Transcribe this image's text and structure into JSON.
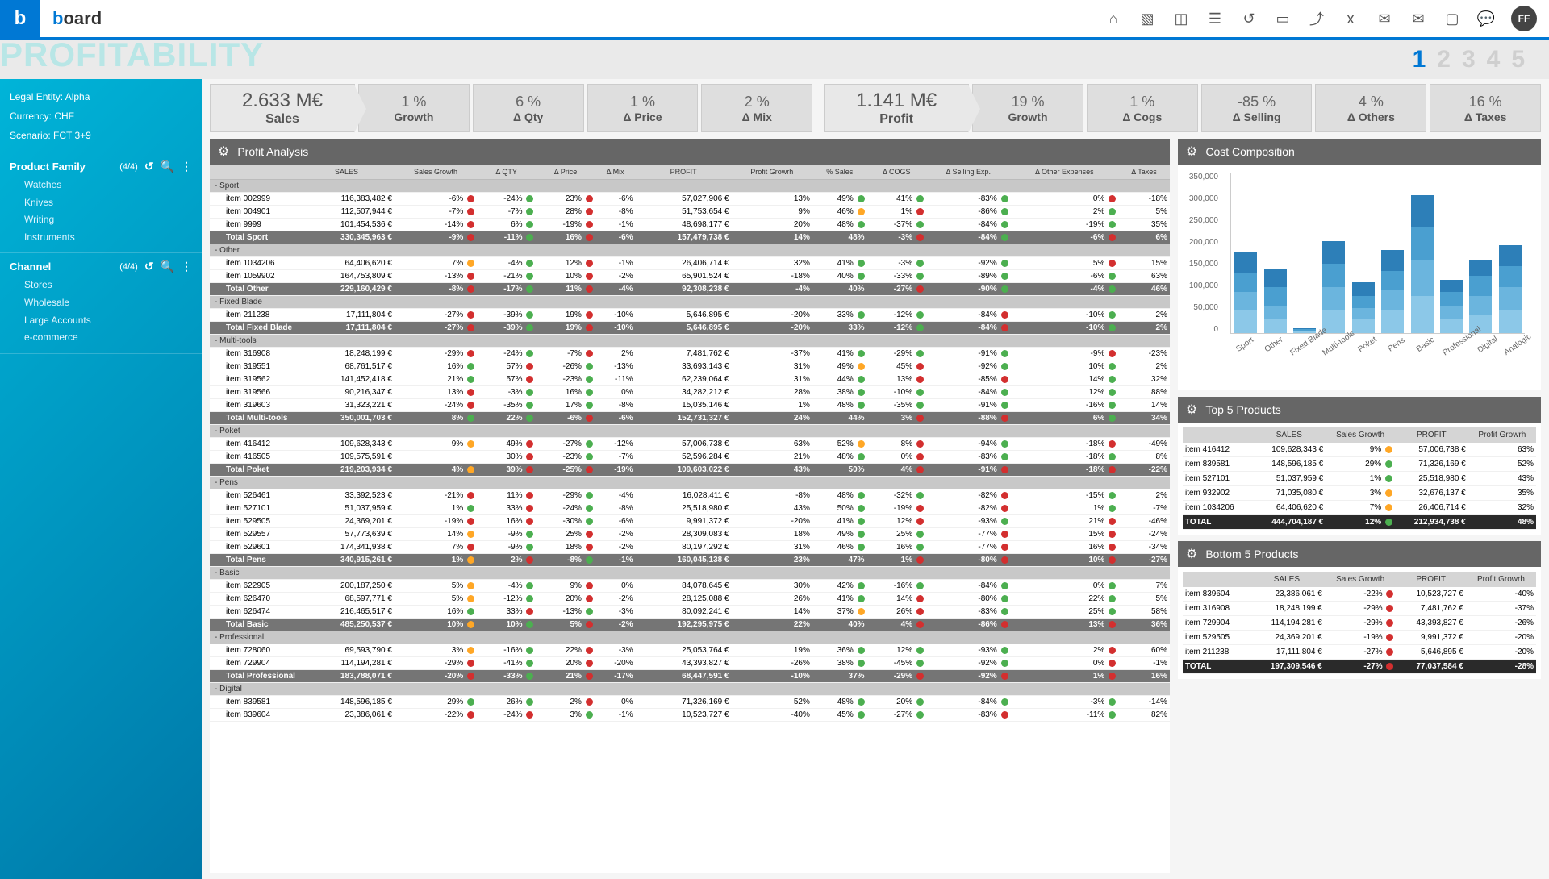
{
  "header": {
    "logo_b": "b",
    "brand": {
      "b": "b",
      "rest": "oard"
    },
    "avatar": "FF"
  },
  "title": "PROFITABILITY",
  "pagers": [
    "1",
    "2",
    "3",
    "4",
    "5"
  ],
  "sidebar": {
    "meta": {
      "entity": "Legal Entity: Alpha",
      "currency": "Currency:  CHF",
      "scenario": "Scenario: FCT 3+9"
    },
    "family": {
      "title": "Product Family",
      "count": "(4/4)",
      "items": [
        "Watches",
        "Knives",
        "Writing",
        "Instruments"
      ]
    },
    "channel": {
      "title": "Channel",
      "count": "(4/4)",
      "items": [
        "Stores",
        "Wholesale",
        "Large Accounts",
        "e-commerce"
      ]
    }
  },
  "kpis_left": [
    {
      "val": "2.633 M€",
      "lbl": "Sales",
      "big": true
    },
    {
      "val": "1 %",
      "lbl": "Growth"
    },
    {
      "val": "6 %",
      "lbl": "Δ Qty"
    },
    {
      "val": "1 %",
      "lbl": "Δ Price"
    },
    {
      "val": "2 %",
      "lbl": "Δ Mix"
    }
  ],
  "kpis_right": [
    {
      "val": "1.141 M€",
      "lbl": "Profit",
      "big": true
    },
    {
      "val": "19 %",
      "lbl": "Growth"
    },
    {
      "val": "1 %",
      "lbl": "Δ Cogs"
    },
    {
      "val": "-85 %",
      "lbl": "Δ Selling"
    },
    {
      "val": "4 %",
      "lbl": "Δ Others"
    },
    {
      "val": "16 %",
      "lbl": "Δ Taxes"
    }
  ],
  "profit_analysis": {
    "title": "Profit Analysis",
    "cols": [
      "",
      "SALES",
      "Sales Growth",
      "Δ QTY",
      "Δ Price",
      "Δ Mix",
      "PROFIT",
      "Profit Growrh",
      "% Sales",
      "Δ COGS",
      "Δ Selling Exp.",
      "Δ Other Expenses",
      "Δ Taxes"
    ],
    "rows": [
      {
        "t": "group",
        "c": [
          "-  Sport"
        ]
      },
      {
        "t": "row",
        "c": [
          "item 002999",
          "116,383,482 €",
          "-6%:r",
          "-24%:g",
          "23%:r",
          "-6%:",
          "57,027,906 €",
          "13%:",
          "49%:g",
          "41%:g",
          "-83%:g",
          "0%:r",
          "-18%:"
        ]
      },
      {
        "t": "row",
        "c": [
          "item 004901",
          "112,507,944 €",
          "-7%:r",
          "-7%:g",
          "28%:r",
          "-8%:",
          "51,753,654 €",
          "9%:",
          "46%:y",
          "1%:r",
          "-86%:g",
          "2%:g",
          "5%:"
        ]
      },
      {
        "t": "row",
        "c": [
          "item 9999",
          "101,454,536 €",
          "-14%:r",
          "6%:g",
          "-19%:r",
          "-1%:",
          "48,698,177 €",
          "20%:",
          "48%:g",
          "-37%:g",
          "-84%:g",
          "-19%:g",
          "35%:"
        ]
      },
      {
        "t": "total",
        "c": [
          "Total Sport",
          "330,345,963 €",
          "-9%:r",
          "-11%:g",
          "16%:r",
          "-6%:",
          "157,479,738 €",
          "14%:",
          "48%:",
          "-3%:r",
          "-84%:g",
          "-6%:r",
          "6%:"
        ]
      },
      {
        "t": "group",
        "c": [
          "-  Other"
        ]
      },
      {
        "t": "row",
        "c": [
          "item 1034206",
          "64,406,620 €",
          "7%:y",
          "-4%:g",
          "12%:r",
          "-1%:",
          "26,406,714 €",
          "32%:",
          "41%:g",
          "-3%:g",
          "-92%:g",
          "5%:r",
          "15%:"
        ]
      },
      {
        "t": "row",
        "c": [
          "item 1059902",
          "164,753,809 €",
          "-13%:r",
          "-21%:g",
          "10%:r",
          "-2%:",
          "65,901,524 €",
          "-18%:",
          "40%:g",
          "-33%:g",
          "-89%:g",
          "-6%:g",
          "63%:"
        ]
      },
      {
        "t": "total",
        "c": [
          "Total Other",
          "229,160,429 €",
          "-8%:r",
          "-17%:g",
          "11%:r",
          "-4%:",
          "92,308,238 €",
          "-4%:",
          "40%:",
          "-27%:r",
          "-90%:g",
          "-4%:g",
          "46%:"
        ]
      },
      {
        "t": "group",
        "c": [
          "-  Fixed Blade"
        ]
      },
      {
        "t": "row",
        "c": [
          "item 211238",
          "17,111,804 €",
          "-27%:r",
          "-39%:g",
          "19%:r",
          "-10%:",
          "5,646,895 €",
          "-20%:",
          "33%:g",
          "-12%:g",
          "-84%:r",
          "-10%:g",
          "2%:"
        ]
      },
      {
        "t": "total",
        "c": [
          "Total Fixed Blade",
          "17,111,804 €",
          "-27%:r",
          "-39%:g",
          "19%:r",
          "-10%:",
          "5,646,895 €",
          "-20%:",
          "33%:",
          "-12%:g",
          "-84%:r",
          "-10%:g",
          "2%:"
        ]
      },
      {
        "t": "group",
        "c": [
          "-  Multi-tools"
        ]
      },
      {
        "t": "row",
        "c": [
          "item 316908",
          "18,248,199 €",
          "-29%:r",
          "-24%:g",
          "-7%:r",
          "2%:",
          "7,481,762 €",
          "-37%:",
          "41%:g",
          "-29%:g",
          "-91%:g",
          "-9%:r",
          "-23%:"
        ]
      },
      {
        "t": "row",
        "c": [
          "item 319551",
          "68,761,517 €",
          "16%:g",
          "57%:r",
          "-26%:g",
          "-13%:",
          "33,693,143 €",
          "31%:",
          "49%:y",
          "45%:r",
          "-92%:g",
          "10%:g",
          "2%:"
        ]
      },
      {
        "t": "row",
        "c": [
          "item 319562",
          "141,452,418 €",
          "21%:g",
          "57%:r",
          "-23%:g",
          "-11%:",
          "62,239,064 €",
          "31%:",
          "44%:g",
          "13%:r",
          "-85%:r",
          "14%:g",
          "32%:"
        ]
      },
      {
        "t": "row",
        "c": [
          "item 319566",
          "90,216,347 €",
          "13%:r",
          "-3%:g",
          "16%:g",
          "0%:",
          "34,282,212 €",
          "28%:",
          "38%:g",
          "-10%:g",
          "-84%:g",
          "12%:g",
          "88%:"
        ]
      },
      {
        "t": "row",
        "c": [
          "item 319603",
          "31,323,221 €",
          "-24%:r",
          "-35%:g",
          "17%:g",
          "-8%:",
          "15,035,146 €",
          "1%:",
          "48%:g",
          "-35%:g",
          "-91%:g",
          "-16%:g",
          "14%:"
        ]
      },
      {
        "t": "total",
        "c": [
          "Total Multi-tools",
          "350,001,703 €",
          "8%:g",
          "22%:g",
          "-6%:r",
          "-6%:",
          "152,731,327 €",
          "24%:",
          "44%:",
          "3%:r",
          "-88%:r",
          "6%:g",
          "34%:"
        ]
      },
      {
        "t": "group",
        "c": [
          "-  Poket"
        ]
      },
      {
        "t": "row",
        "c": [
          "item 416412",
          "109,628,343 €",
          "9%:y",
          "49%:r",
          "-27%:g",
          "-12%:",
          "57,006,738 €",
          "63%:",
          "52%:y",
          "8%:r",
          "-94%:g",
          "-18%:r",
          "-49%:"
        ]
      },
      {
        "t": "row",
        "c": [
          "item 416505",
          "109,575,591 €",
          ":",
          "30%:r",
          "-23%:g",
          "-7%:",
          "52,596,284 €",
          "21%:",
          "48%:g",
          "0%:r",
          "-83%:g",
          "-18%:g",
          "8%:"
        ]
      },
      {
        "t": "total",
        "c": [
          "Total Poket",
          "219,203,934 €",
          "4%:y",
          "39%:r",
          "-25%:r",
          "-19%:",
          "109,603,022 €",
          "43%:",
          "50%:",
          "4%:r",
          "-91%:r",
          "-18%:r",
          "-22%:"
        ]
      },
      {
        "t": "group",
        "c": [
          "-  Pens"
        ]
      },
      {
        "t": "row",
        "c": [
          "item 526461",
          "33,392,523 €",
          "-21%:r",
          "11%:r",
          "-29%:g",
          "-4%:",
          "16,028,411 €",
          "-8%:",
          "48%:g",
          "-32%:g",
          "-82%:r",
          "-15%:g",
          "2%:"
        ]
      },
      {
        "t": "row",
        "c": [
          "item 527101",
          "51,037,959 €",
          "1%:g",
          "33%:r",
          "-24%:g",
          "-8%:",
          "25,518,980 €",
          "43%:",
          "50%:g",
          "-19%:r",
          "-82%:r",
          "1%:g",
          "-7%:"
        ]
      },
      {
        "t": "row",
        "c": [
          "item 529505",
          "24,369,201 €",
          "-19%:r",
          "16%:r",
          "-30%:g",
          "-6%:",
          "9,991,372 €",
          "-20%:",
          "41%:g",
          "12%:r",
          "-93%:g",
          "21%:r",
          "-46%:"
        ]
      },
      {
        "t": "row",
        "c": [
          "item 529557",
          "57,773,639 €",
          "14%:y",
          "-9%:g",
          "25%:r",
          "-2%:",
          "28,309,083 €",
          "18%:",
          "49%:g",
          "25%:g",
          "-77%:r",
          "15%:r",
          "-24%:"
        ]
      },
      {
        "t": "row",
        "c": [
          "item 529601",
          "174,341,938 €",
          "7%:r",
          "-9%:g",
          "18%:r",
          "-2%:",
          "80,197,292 €",
          "31%:",
          "46%:g",
          "16%:g",
          "-77%:r",
          "16%:r",
          "-34%:"
        ]
      },
      {
        "t": "total",
        "c": [
          "Total Pens",
          "340,915,261 €",
          "1%:y",
          "2%:r",
          "-8%:g",
          "-1%:",
          "160,045,138 €",
          "23%:",
          "47%:",
          "1%:r",
          "-80%:r",
          "10%:r",
          "-27%:"
        ]
      },
      {
        "t": "group",
        "c": [
          "-  Basic"
        ]
      },
      {
        "t": "row",
        "c": [
          "item 622905",
          "200,187,250 €",
          "5%:y",
          "-4%:g",
          "9%:r",
          "0%:",
          "84,078,645 €",
          "30%:",
          "42%:g",
          "-16%:g",
          "-84%:g",
          "0%:g",
          "7%:"
        ]
      },
      {
        "t": "row",
        "c": [
          "item 626470",
          "68,597,771 €",
          "5%:y",
          "-12%:g",
          "20%:r",
          "-2%:",
          "28,125,088 €",
          "26%:",
          "41%:g",
          "14%:r",
          "-80%:g",
          "22%:g",
          "5%:"
        ]
      },
      {
        "t": "row",
        "c": [
          "item 626474",
          "216,465,517 €",
          "16%:g",
          "33%:r",
          "-13%:g",
          "-3%:",
          "80,092,241 €",
          "14%:",
          "37%:y",
          "26%:r",
          "-83%:g",
          "25%:g",
          "58%:"
        ]
      },
      {
        "t": "total",
        "c": [
          "Total Basic",
          "485,250,537 €",
          "10%:y",
          "10%:g",
          "5%:r",
          "-2%:",
          "192,295,975 €",
          "22%:",
          "40%:",
          "4%:r",
          "-86%:r",
          "13%:r",
          "36%:"
        ]
      },
      {
        "t": "group",
        "c": [
          "-  Professional"
        ]
      },
      {
        "t": "row",
        "c": [
          "item 728060",
          "69,593,790 €",
          "3%:y",
          "-16%:g",
          "22%:r",
          "-3%:",
          "25,053,764 €",
          "19%:",
          "36%:g",
          "12%:g",
          "-93%:g",
          "2%:r",
          "60%:"
        ]
      },
      {
        "t": "row",
        "c": [
          "item 729904",
          "114,194,281 €",
          "-29%:r",
          "-41%:g",
          "20%:r",
          "-20%:",
          "43,393,827 €",
          "-26%:",
          "38%:g",
          "-45%:g",
          "-92%:g",
          "0%:r",
          "-1%:"
        ]
      },
      {
        "t": "total",
        "c": [
          "Total Professional",
          "183,788,071 €",
          "-20%:r",
          "-33%:g",
          "21%:r",
          "-17%:",
          "68,447,591 €",
          "-10%:",
          "37%:",
          "-29%:r",
          "-92%:r",
          "1%:r",
          "16%:"
        ]
      },
      {
        "t": "group",
        "c": [
          "-  Digital"
        ]
      },
      {
        "t": "row",
        "c": [
          "item 839581",
          "148,596,185 €",
          "29%:g",
          "26%:g",
          "2%:r",
          "0%:",
          "71,326,169 €",
          "52%:",
          "48%:g",
          "20%:g",
          "-84%:g",
          "-3%:g",
          "-14%:"
        ]
      },
      {
        "t": "row",
        "c": [
          "item 839604",
          "23,386,061 €",
          "-22%:r",
          "-24%:r",
          "3%:g",
          "-1%:",
          "10,523,727 €",
          "-40%:",
          "45%:g",
          "-27%:g",
          "-83%:r",
          "-11%:g",
          "82%:"
        ]
      }
    ]
  },
  "cost_chart": {
    "title": "Cost Composition",
    "ylabels": [
      "350,000",
      "300,000",
      "250,000",
      "200,000",
      "150,000",
      "100,000",
      "50,000",
      "0"
    ],
    "max": 350000,
    "cats": [
      "Sport",
      "Other",
      "Fixed Blade",
      "Multi-tools",
      "Poket",
      "Pens",
      "Basic",
      "Professional",
      "Digital",
      "Analogic"
    ],
    "stacks": [
      [
        50000,
        40000,
        40000,
        45000
      ],
      [
        30000,
        30000,
        40000,
        40000
      ],
      [
        3000,
        3000,
        2000,
        2000
      ],
      [
        50000,
        50000,
        50000,
        50000
      ],
      [
        30000,
        25000,
        25000,
        30000
      ],
      [
        50000,
        45000,
        40000,
        45000
      ],
      [
        80000,
        80000,
        70000,
        70000
      ],
      [
        30000,
        30000,
        30000,
        25000
      ],
      [
        40000,
        40000,
        45000,
        35000
      ],
      [
        50000,
        50000,
        45000,
        45000
      ]
    ],
    "colors": [
      "#8cc8e8",
      "#6bb5de",
      "#4a9fd0",
      "#2d7fb8"
    ]
  },
  "top5": {
    "title": "Top 5 Products",
    "cols": [
      "",
      "SALES",
      "Sales Growth",
      "PROFIT",
      "Profit Growrh"
    ],
    "rows": [
      [
        "item 416412",
        "109,628,343 €",
        "9%:y",
        "57,006,738 €",
        "63%:"
      ],
      [
        "item 839581",
        "148,596,185 €",
        "29%:g",
        "71,326,169 €",
        "52%:"
      ],
      [
        "item 527101",
        "51,037,959 €",
        "1%:g",
        "25,518,980 €",
        "43%:"
      ],
      [
        "item 932902",
        "71,035,080 €",
        "3%:y",
        "32,676,137 €",
        "35%:"
      ],
      [
        "item 1034206",
        "64,406,620 €",
        "7%:y",
        "26,406,714 €",
        "32%:"
      ]
    ],
    "total": [
      "TOTAL",
      "444,704,187 €",
      "12%:g",
      "212,934,738 €",
      "48%:"
    ]
  },
  "bottom5": {
    "title": "Bottom 5 Products",
    "cols": [
      "",
      "SALES",
      "Sales Growth",
      "PROFIT",
      "Profit Growrh"
    ],
    "rows": [
      [
        "item 839604",
        "23,386,061 €",
        "-22%:r",
        "10,523,727 €",
        "-40%:"
      ],
      [
        "item 316908",
        "18,248,199 €",
        "-29%:r",
        "7,481,762 €",
        "-37%:"
      ],
      [
        "item 729904",
        "114,194,281 €",
        "-29%:r",
        "43,393,827 €",
        "-26%:"
      ],
      [
        "item 529505",
        "24,369,201 €",
        "-19%:r",
        "9,991,372 €",
        "-20%:"
      ],
      [
        "item 211238",
        "17,111,804 €",
        "-27%:r",
        "5,646,895 €",
        "-20%:"
      ]
    ],
    "total": [
      "TOTAL",
      "197,309,546 €",
      "-27%:r",
      "77,037,584 €",
      "-28%:"
    ]
  }
}
